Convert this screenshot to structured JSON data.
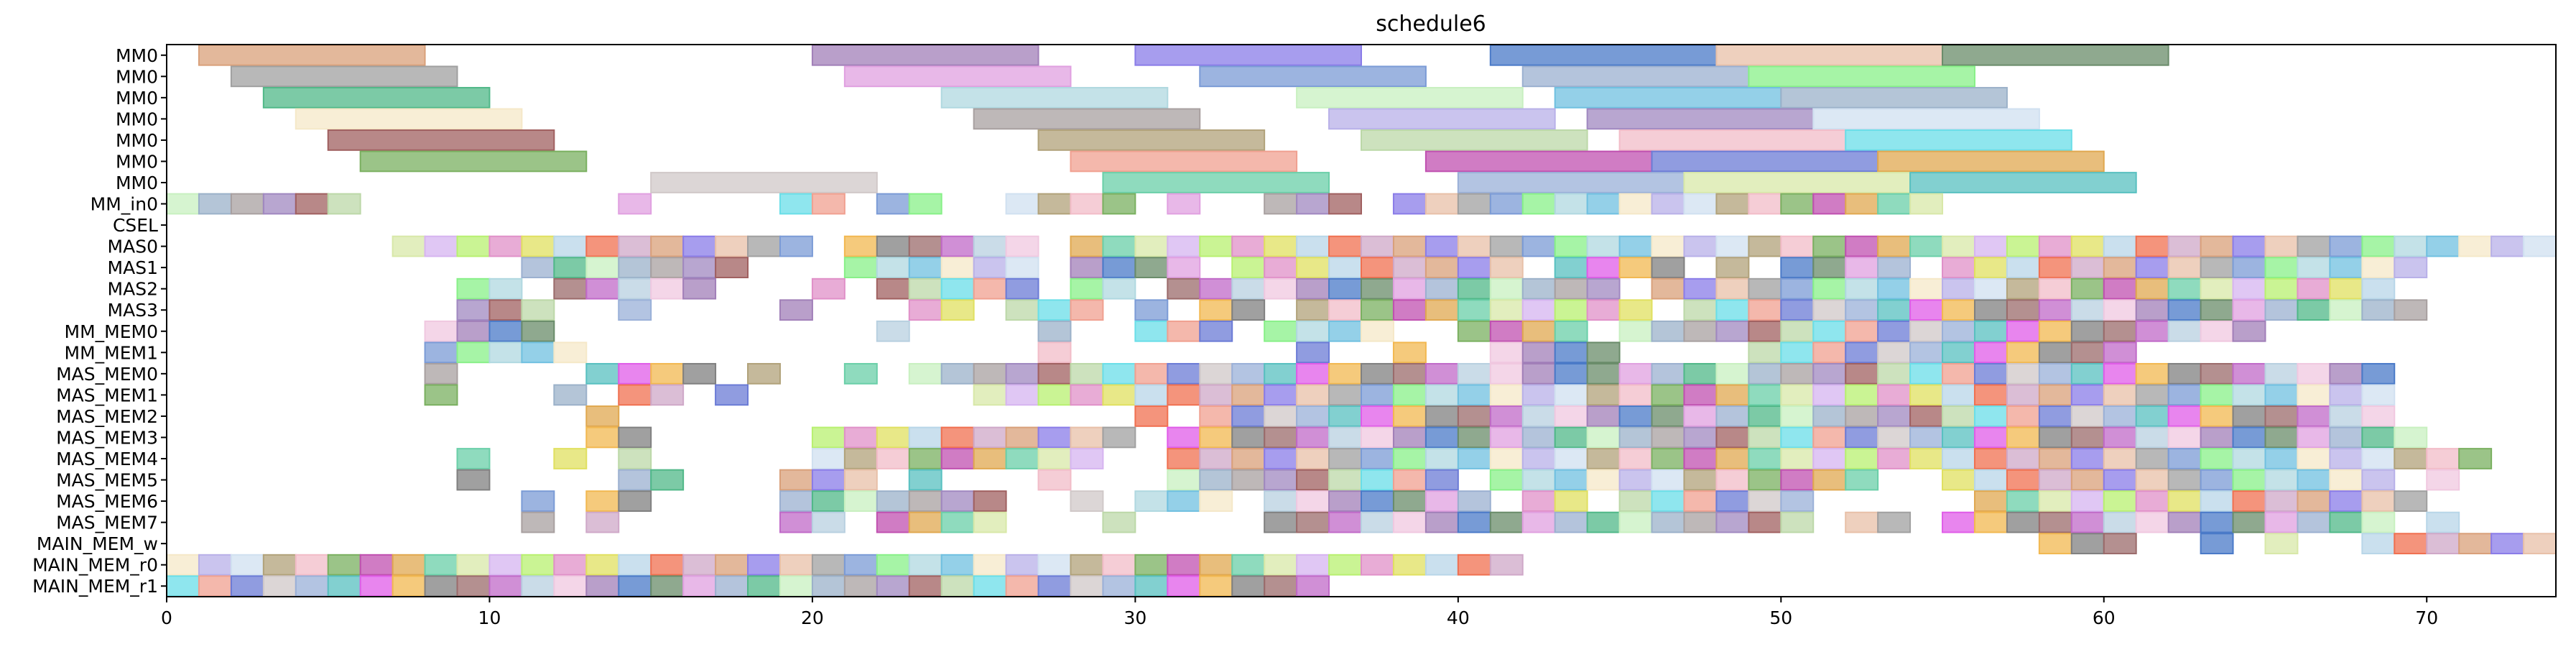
{
  "chart_data": {
    "type": "gantt",
    "title": "schedule6",
    "xlim": [
      0,
      74
    ],
    "xticks": [
      0,
      10,
      20,
      30,
      40,
      50,
      60,
      70
    ],
    "rows": [
      "MM0",
      "MM0",
      "MM0",
      "MM0",
      "MM0",
      "MM0",
      "MM0",
      "MM_in0",
      "CSEL",
      "MAS0",
      "MAS1",
      "MAS2",
      "MAS3",
      "MM_MEM0",
      "MM_MEM1",
      "MAS_MEM0",
      "MAS_MEM1",
      "MAS_MEM2",
      "MAS_MEM3",
      "MAS_MEM4",
      "MAS_MEM5",
      "MAS_MEM6",
      "MAS_MEM7",
      "MAIN_MEM_w",
      "MAIN_MEM_r0",
      "MAIN_MEM_r1"
    ],
    "palette": [
      "#d9a07a",
      "#9b6b6b",
      "#d6b4f0",
      "#6b7bd6",
      "#b1a27a",
      "#9bb1c9",
      "#7b9bd6",
      "#a17fb8",
      "#b8d6e8",
      "#e05ce8",
      "#e0a850",
      "#bcd8a8",
      "#f5e8c8",
      "#9bb0d0",
      "#8a7ce8",
      "#c06ac8",
      "#b8f070",
      "#d0c8c8",
      "#f2bcc8",
      "#a8a0a0",
      "#88f088",
      "#4a7ac8",
      "#f07050",
      "#f2b850",
      "#6acfa8",
      "#6adee8",
      "#b8b0e8",
      "#50b888",
      "#e8c0a8",
      "#b8d0e0",
      "#e090c8",
      "#9ab0d8",
      "#7ab060",
      "#a088c0",
      "#b0d8e0",
      "#6a8c6a",
      "#cfa8c8",
      "#808080",
      "#d8e8a8",
      "#f0a090",
      "#d0e0f0",
      "#c8f0c0",
      "#a0a0a0",
      "#f0c8e0",
      "#e0e060",
      "#58c0c0",
      "#c050b0",
      "#a06060",
      "#70c0e0",
      "#e0a0e0"
    ],
    "tasks": [
      {
        "row": 0,
        "start": 1,
        "end": 8
      },
      {
        "row": 0,
        "start": 20,
        "end": 27
      },
      {
        "row": 0,
        "start": 30,
        "end": 37
      },
      {
        "row": 0,
        "start": 41,
        "end": 48
      },
      {
        "row": 0,
        "start": 48,
        "end": 55
      },
      {
        "row": 0,
        "start": 55,
        "end": 62
      },
      {
        "row": 1,
        "start": 2,
        "end": 9
      },
      {
        "row": 1,
        "start": 21,
        "end": 28
      },
      {
        "row": 1,
        "start": 32,
        "end": 39
      },
      {
        "row": 1,
        "start": 42,
        "end": 49
      },
      {
        "row": 1,
        "start": 49,
        "end": 56
      },
      {
        "row": 2,
        "start": 3,
        "end": 10
      },
      {
        "row": 2,
        "start": 24,
        "end": 31
      },
      {
        "row": 2,
        "start": 35,
        "end": 42
      },
      {
        "row": 2,
        "start": 43,
        "end": 50
      },
      {
        "row": 2,
        "start": 50,
        "end": 57
      },
      {
        "row": 3,
        "start": 4,
        "end": 11
      },
      {
        "row": 3,
        "start": 25,
        "end": 32
      },
      {
        "row": 3,
        "start": 36,
        "end": 43
      },
      {
        "row": 3,
        "start": 44,
        "end": 51
      },
      {
        "row": 3,
        "start": 51,
        "end": 58
      },
      {
        "row": 4,
        "start": 5,
        "end": 12
      },
      {
        "row": 4,
        "start": 27,
        "end": 34
      },
      {
        "row": 4,
        "start": 37,
        "end": 44
      },
      {
        "row": 4,
        "start": 45,
        "end": 52
      },
      {
        "row": 4,
        "start": 52,
        "end": 59
      },
      {
        "row": 5,
        "start": 6,
        "end": 13
      },
      {
        "row": 5,
        "start": 28,
        "end": 35
      },
      {
        "row": 5,
        "start": 39,
        "end": 46
      },
      {
        "row": 5,
        "start": 46,
        "end": 53
      },
      {
        "row": 5,
        "start": 53,
        "end": 60
      },
      {
        "row": 6,
        "start": 15,
        "end": 22
      },
      {
        "row": 6,
        "start": 29,
        "end": 36
      },
      {
        "row": 6,
        "start": 40,
        "end": 47
      },
      {
        "row": 6,
        "start": 47,
        "end": 54
      },
      {
        "row": 6,
        "start": 54,
        "end": 61
      }
    ],
    "unit_rows": [
      {
        "row": 7,
        "cells": [
          0,
          1,
          2,
          3,
          4,
          5,
          14,
          19,
          20,
          22,
          23,
          26,
          27,
          28,
          29,
          31,
          34,
          35,
          36,
          38,
          39,
          40,
          41,
          42,
          43,
          44,
          45,
          46,
          47,
          48,
          49,
          50,
          51,
          52,
          53,
          54
        ]
      },
      {
        "row": 9,
        "cells": [
          7,
          8,
          9,
          10,
          11,
          12,
          13,
          14,
          15,
          16,
          17,
          18,
          19,
          21,
          22,
          23,
          24,
          25,
          26,
          28,
          29,
          30,
          31,
          32,
          33,
          34,
          35,
          36,
          37,
          38,
          39,
          40,
          41,
          42,
          43,
          44,
          45,
          46,
          47,
          48,
          49,
          50,
          51,
          52,
          53,
          54,
          55,
          56,
          57,
          58,
          59,
          60,
          61,
          62,
          63,
          64,
          65,
          66,
          67,
          68,
          69,
          70,
          71,
          72,
          73
        ]
      },
      {
        "row": 10,
        "cells": [
          11,
          12,
          13,
          14,
          15,
          16,
          17,
          21,
          22,
          23,
          24,
          25,
          26,
          28,
          29,
          30,
          31,
          33,
          34,
          35,
          36,
          37,
          38,
          39,
          40,
          41,
          43,
          44,
          45,
          46,
          48,
          50,
          51,
          52,
          53,
          55,
          56,
          57,
          58,
          59,
          60,
          61,
          62,
          63,
          64,
          65,
          66,
          67,
          68,
          69
        ]
      },
      {
        "row": 11,
        "cells": [
          9,
          10,
          12,
          13,
          14,
          15,
          16,
          20,
          22,
          23,
          24,
          25,
          26,
          28,
          29,
          31,
          32,
          33,
          34,
          35,
          36,
          37,
          38,
          39,
          40,
          41,
          42,
          43,
          44,
          46,
          47,
          48,
          49,
          50,
          51,
          52,
          53,
          54,
          55,
          56,
          57,
          58,
          59,
          60,
          61,
          62,
          63,
          64,
          65,
          66,
          67,
          68
        ]
      },
      {
        "row": 12,
        "cells": [
          9,
          10,
          11,
          14,
          19,
          23,
          24,
          26,
          27,
          28,
          30,
          32,
          33,
          35,
          36,
          37,
          38,
          39,
          40,
          41,
          42,
          43,
          44,
          45,
          47,
          48,
          49,
          50,
          51,
          52,
          53,
          54,
          55,
          56,
          57,
          58,
          59,
          60,
          61,
          62,
          63,
          64,
          65,
          66,
          67,
          68,
          69
        ]
      },
      {
        "row": 13,
        "cells": [
          8,
          9,
          10,
          11,
          22,
          27,
          30,
          31,
          32,
          34,
          35,
          36,
          37,
          40,
          41,
          42,
          43,
          45,
          46,
          47,
          48,
          49,
          50,
          51,
          52,
          53,
          54,
          55,
          56,
          57,
          58,
          59,
          60,
          61,
          62,
          63,
          64
        ]
      },
      {
        "row": 14,
        "cells": [
          8,
          9,
          10,
          11,
          12,
          27,
          35,
          38,
          41,
          42,
          43,
          44,
          49,
          50,
          51,
          52,
          53,
          54,
          55,
          56,
          57,
          58,
          59,
          60
        ]
      },
      {
        "row": 15,
        "cells": [
          8,
          13,
          14,
          15,
          16,
          18,
          21,
          23,
          24,
          25,
          26,
          27,
          28,
          29,
          30,
          31,
          32,
          33,
          34,
          35,
          36,
          37,
          38,
          39,
          40,
          41,
          42,
          43,
          44,
          45,
          46,
          47,
          48,
          49,
          50,
          51,
          52,
          53,
          54,
          55,
          56,
          57,
          58,
          59,
          60,
          61,
          62,
          63,
          64,
          65,
          66,
          67,
          68
        ]
      },
      {
        "row": 16,
        "cells": [
          8,
          12,
          14,
          15,
          17,
          25,
          26,
          27,
          28,
          29,
          30,
          31,
          32,
          33,
          34,
          35,
          36,
          37,
          38,
          39,
          40,
          41,
          42,
          43,
          44,
          45,
          46,
          47,
          48,
          49,
          50,
          51,
          52,
          53,
          54,
          55,
          56,
          57,
          58,
          59,
          60,
          61,
          62,
          63,
          64,
          65,
          66,
          67,
          68
        ]
      },
      {
        "row": 17,
        "cells": [
          13,
          30,
          32,
          33,
          34,
          35,
          36,
          37,
          38,
          39,
          40,
          41,
          42,
          43,
          44,
          45,
          46,
          47,
          48,
          49,
          50,
          51,
          52,
          53,
          54,
          55,
          56,
          57,
          58,
          59,
          60,
          61,
          62,
          63,
          64,
          65,
          66,
          67,
          68
        ]
      },
      {
        "row": 18,
        "cells": [
          13,
          14,
          20,
          21,
          22,
          23,
          24,
          25,
          26,
          27,
          28,
          29,
          31,
          32,
          33,
          34,
          35,
          36,
          37,
          38,
          39,
          40,
          41,
          42,
          43,
          44,
          45,
          46,
          47,
          48,
          49,
          50,
          51,
          52,
          53,
          54,
          55,
          56,
          57,
          58,
          59,
          60,
          61,
          62,
          63,
          64,
          65,
          66,
          67,
          68,
          69
        ]
      },
      {
        "row": 19,
        "cells": [
          9,
          12,
          14,
          20,
          21,
          22,
          23,
          24,
          25,
          26,
          27,
          28,
          31,
          32,
          33,
          34,
          35,
          36,
          37,
          38,
          39,
          40,
          41,
          42,
          43,
          44,
          45,
          46,
          47,
          48,
          49,
          50,
          51,
          52,
          53,
          54,
          55,
          56,
          57,
          58,
          59,
          60,
          61,
          62,
          63,
          64,
          65,
          66,
          67,
          68,
          69,
          70,
          71
        ]
      },
      {
        "row": 20,
        "cells": [
          9,
          14,
          15,
          19,
          20,
          21,
          23,
          27,
          31,
          32,
          33,
          34,
          35,
          36,
          37,
          38,
          39,
          41,
          42,
          43,
          44,
          45,
          46,
          47,
          48,
          49,
          50,
          51,
          52,
          55,
          56,
          57,
          58,
          59,
          60,
          61,
          62,
          63,
          64,
          65,
          66,
          67,
          68,
          70
        ]
      },
      {
        "row": 21,
        "cells": [
          11,
          13,
          14,
          19,
          20,
          21,
          22,
          23,
          24,
          25,
          28,
          30,
          31,
          32,
          34,
          35,
          36,
          37,
          38,
          39,
          40,
          42,
          43,
          45,
          46,
          47,
          48,
          49,
          50,
          56,
          57,
          58,
          59,
          60,
          61,
          62,
          63,
          64,
          65,
          66,
          67,
          68,
          69
        ]
      },
      {
        "row": 22,
        "cells": [
          11,
          13,
          19,
          20,
          22,
          23,
          24,
          25,
          29,
          34,
          35,
          36,
          37,
          38,
          39,
          40,
          41,
          42,
          43,
          44,
          45,
          46,
          47,
          48,
          49,
          50,
          52,
          53,
          55,
          56,
          57,
          58,
          59,
          60,
          61,
          62,
          63,
          64,
          65,
          66,
          67,
          68,
          70
        ]
      },
      {
        "row": 23,
        "cells": [
          58,
          59,
          60,
          63,
          65,
          68,
          69,
          70,
          71,
          72,
          73
        ]
      },
      {
        "row": 24,
        "cells": [
          0,
          1,
          2,
          3,
          4,
          5,
          6,
          7,
          8,
          9,
          10,
          11,
          12,
          13,
          14,
          15,
          16,
          17,
          18,
          19,
          20,
          21,
          22,
          23,
          24,
          25,
          26,
          27,
          28,
          29,
          30,
          31,
          32,
          33,
          34,
          35,
          36,
          37,
          38,
          39,
          40,
          41
        ]
      },
      {
        "row": 25,
        "cells": [
          0,
          1,
          2,
          3,
          4,
          5,
          6,
          7,
          8,
          9,
          10,
          11,
          12,
          13,
          14,
          15,
          16,
          17,
          18,
          19,
          20,
          21,
          22,
          23,
          24,
          25,
          26,
          27,
          28,
          29,
          30,
          31,
          32,
          33,
          34,
          35
        ]
      }
    ]
  }
}
